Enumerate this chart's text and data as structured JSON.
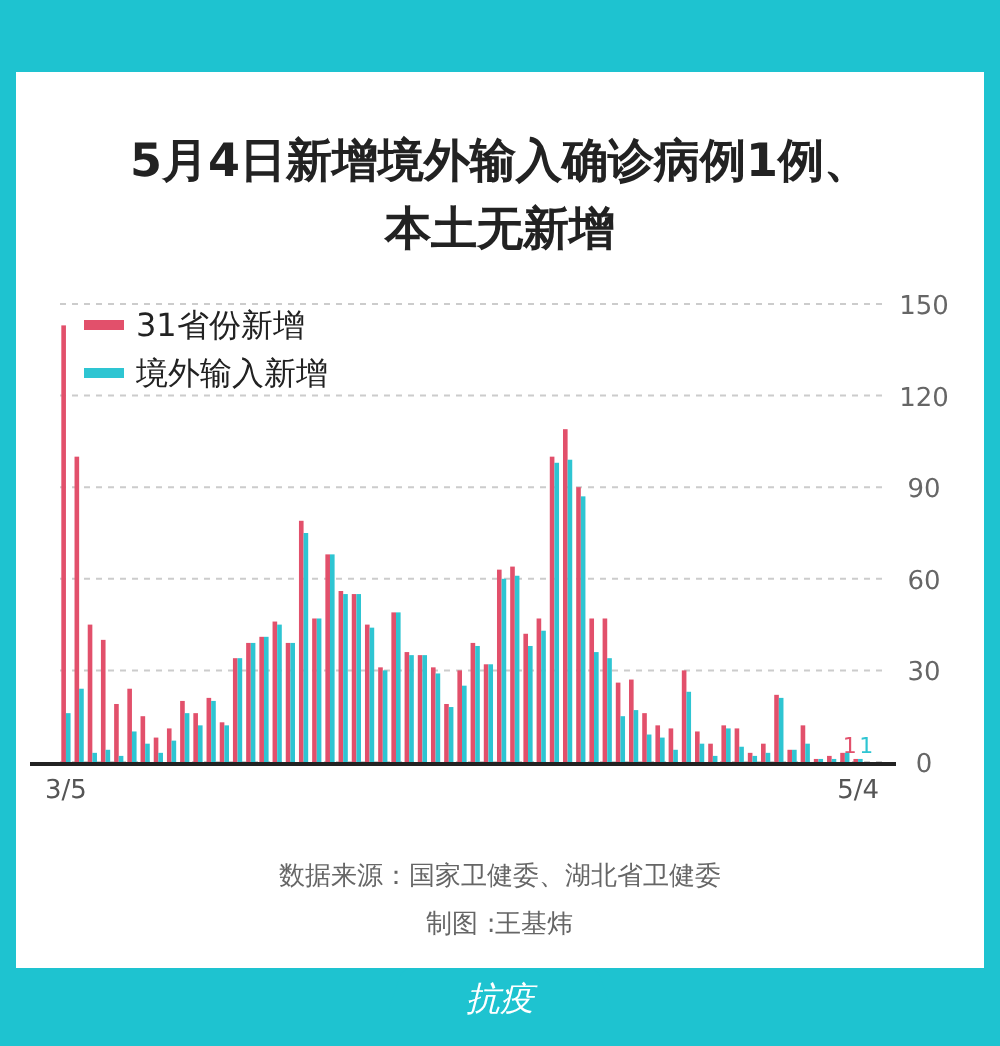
{
  "chart_data": {
    "type": "bar",
    "title": "5月4日新增境外输入确诊病例1例、本土无新增",
    "categories": [
      "3/5",
      null,
      null,
      null,
      null,
      null,
      null,
      null,
      null,
      null,
      null,
      null,
      null,
      null,
      null,
      null,
      null,
      null,
      null,
      null,
      null,
      null,
      null,
      null,
      null,
      null,
      null,
      null,
      null,
      null,
      null,
      null,
      null,
      null,
      null,
      null,
      null,
      null,
      null,
      null,
      null,
      null,
      null,
      null,
      null,
      null,
      null,
      null,
      null,
      null,
      null,
      null,
      null,
      null,
      null,
      null,
      null,
      null,
      null,
      null,
      "5/4"
    ],
    "series": [
      {
        "name": "31省份新增",
        "color": "#e2506b",
        "values": [
          143,
          100,
          45,
          40,
          19,
          24,
          15,
          8,
          11,
          20,
          16,
          21,
          13,
          34,
          39,
          41,
          46,
          39,
          79,
          47,
          68,
          56,
          55,
          45,
          31,
          49,
          36,
          35,
          31,
          19,
          30,
          39,
          32,
          63,
          64,
          42,
          47,
          100,
          109,
          90,
          47,
          47,
          26,
          27,
          16,
          12,
          11,
          30,
          10,
          6,
          12,
          11,
          3,
          6,
          22,
          4,
          12,
          1,
          2,
          3,
          1
        ],
        "value_labels": [
          null,
          null,
          null,
          null,
          null,
          null,
          null,
          null,
          null,
          null,
          null,
          null,
          null,
          null,
          null,
          null,
          null,
          null,
          null,
          null,
          null,
          null,
          null,
          null,
          null,
          null,
          null,
          null,
          null,
          null,
          null,
          null,
          null,
          null,
          null,
          null,
          null,
          null,
          null,
          null,
          null,
          null,
          null,
          null,
          null,
          null,
          null,
          null,
          null,
          null,
          null,
          null,
          null,
          null,
          null,
          null,
          null,
          null,
          null,
          null,
          "1"
        ]
      },
      {
        "name": "境外输入新增",
        "color": "#2ec5d2",
        "values": [
          16,
          24,
          3,
          4,
          2,
          10,
          6,
          3,
          7,
          16,
          12,
          20,
          12,
          34,
          39,
          41,
          45,
          39,
          75,
          47,
          68,
          55,
          55,
          44,
          30,
          49,
          35,
          35,
          29,
          18,
          25,
          38,
          32,
          60,
          61,
          38,
          43,
          98,
          99,
          87,
          36,
          34,
          15,
          17,
          9,
          8,
          4,
          23,
          6,
          2,
          11,
          5,
          2,
          3,
          21,
          4,
          6,
          1,
          1,
          3,
          1
        ],
        "value_labels": [
          null,
          null,
          null,
          null,
          null,
          null,
          null,
          null,
          null,
          null,
          null,
          null,
          null,
          null,
          null,
          null,
          null,
          null,
          null,
          null,
          null,
          null,
          null,
          null,
          null,
          null,
          null,
          null,
          null,
          null,
          null,
          null,
          null,
          null,
          null,
          null,
          null,
          null,
          null,
          null,
          null,
          null,
          null,
          null,
          null,
          null,
          null,
          null,
          null,
          null,
          null,
          null,
          null,
          null,
          null,
          null,
          null,
          null,
          null,
          null,
          "1"
        ]
      }
    ],
    "ylim": [
      0,
      150
    ],
    "yticks": [
      0,
      30,
      60,
      90,
      120,
      150
    ],
    "grid": "y",
    "legend": "top left",
    "annotations": [
      "数据来源：国家卫健委、湖北省卫健委",
      "制图 :王基炜",
      "抗疫"
    ]
  }
}
